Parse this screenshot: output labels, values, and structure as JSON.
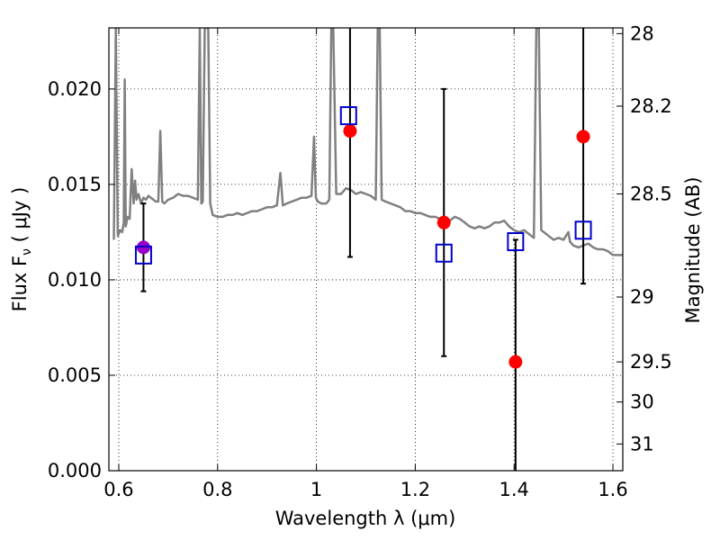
{
  "chart_data": {
    "type": "scatter",
    "xlabel": "Wavelength  λ (μm)",
    "ylabel": "Flux  F",
    "ylabel_sub": "ν",
    "ylabel_unit": "  ( μJy )",
    "y2label": "Magnitude (AB)",
    "xlim": [
      0.58,
      1.62
    ],
    "ylim": [
      0.0,
      0.0232
    ],
    "grid": true,
    "x_ticks": [
      0.6,
      0.8,
      1.0,
      1.2,
      1.4,
      1.6
    ],
    "x_tick_labels": [
      "0.6",
      "0.8",
      "1",
      "1.2",
      "1.4",
      "1.6"
    ],
    "y_ticks": [
      0.0,
      0.005,
      0.01,
      0.015,
      0.02
    ],
    "y_tick_labels": [
      "0.000",
      "0.005",
      "0.010",
      "0.015",
      "0.020"
    ],
    "y2_ticks": [
      {
        "flux": 0.0229,
        "label": "28"
      },
      {
        "flux": 0.0191,
        "label": "28.2"
      },
      {
        "flux": 0.0145,
        "label": "28.5"
      },
      {
        "flux": 0.0091,
        "label": "29"
      },
      {
        "flux": 0.0057,
        "label": "29.5"
      },
      {
        "flux": 0.0036,
        "label": "30"
      },
      {
        "flux": 0.0014,
        "label": "31"
      }
    ],
    "colors": {
      "model": "#808080",
      "observed": "#ff0000",
      "highlight": "#9900cc",
      "synthetic": "#0000cc",
      "errorbar": "#000000"
    },
    "series": [
      {
        "kind": "model_spectrum",
        "points": [
          [
            0.59,
            0.0121
          ],
          [
            0.594,
            0.0232
          ],
          [
            0.598,
            0.0123
          ],
          [
            0.603,
            0.0126
          ],
          [
            0.607,
            0.0125
          ],
          [
            0.61,
            0.013
          ],
          [
            0.612,
            0.0205
          ],
          [
            0.614,
            0.0128
          ],
          [
            0.618,
            0.0133
          ],
          [
            0.622,
            0.0132
          ],
          [
            0.626,
            0.0158
          ],
          [
            0.63,
            0.014
          ],
          [
            0.633,
            0.0152
          ],
          [
            0.636,
            0.0142
          ],
          [
            0.64,
            0.0145
          ],
          [
            0.645,
            0.014
          ],
          [
            0.65,
            0.0143
          ],
          [
            0.655,
            0.0142
          ],
          [
            0.66,
            0.0144
          ],
          [
            0.665,
            0.0143
          ],
          [
            0.67,
            0.0142
          ],
          [
            0.675,
            0.0141
          ],
          [
            0.68,
            0.0141
          ],
          [
            0.684,
            0.0178
          ],
          [
            0.688,
            0.0141
          ],
          [
            0.692,
            0.014
          ],
          [
            0.7,
            0.0142
          ],
          [
            0.71,
            0.0143
          ],
          [
            0.72,
            0.0145
          ],
          [
            0.73,
            0.0144
          ],
          [
            0.74,
            0.0144
          ],
          [
            0.75,
            0.0143
          ],
          [
            0.76,
            0.0142
          ],
          [
            0.764,
            0.0232
          ],
          [
            0.767,
            0.014
          ],
          [
            0.77,
            0.0141
          ],
          [
            0.774,
            0.0232
          ],
          [
            0.778,
            0.0232
          ],
          [
            0.781,
            0.0232
          ],
          [
            0.785,
            0.014
          ],
          [
            0.79,
            0.0134
          ],
          [
            0.8,
            0.0133
          ],
          [
            0.81,
            0.0133
          ],
          [
            0.82,
            0.0134
          ],
          [
            0.83,
            0.0134
          ],
          [
            0.84,
            0.0135
          ],
          [
            0.85,
            0.0134
          ],
          [
            0.86,
            0.0135
          ],
          [
            0.87,
            0.0136
          ],
          [
            0.88,
            0.0136
          ],
          [
            0.89,
            0.0137
          ],
          [
            0.9,
            0.0138
          ],
          [
            0.91,
            0.0138
          ],
          [
            0.92,
            0.0139
          ],
          [
            0.927,
            0.0156
          ],
          [
            0.932,
            0.0139
          ],
          [
            0.94,
            0.014
          ],
          [
            0.95,
            0.0141
          ],
          [
            0.96,
            0.0142
          ],
          [
            0.97,
            0.0143
          ],
          [
            0.98,
            0.0143
          ],
          [
            0.99,
            0.0144
          ],
          [
            0.995,
            0.0175
          ],
          [
            0.999,
            0.0143
          ],
          [
            1.003,
            0.0141
          ],
          [
            1.01,
            0.014
          ],
          [
            1.02,
            0.014
          ],
          [
            1.026,
            0.0142
          ],
          [
            1.03,
            0.0232
          ],
          [
            1.034,
            0.0232
          ],
          [
            1.04,
            0.0145
          ],
          [
            1.05,
            0.0145
          ],
          [
            1.06,
            0.0148
          ],
          [
            1.07,
            0.0147
          ],
          [
            1.08,
            0.0145
          ],
          [
            1.09,
            0.0146
          ],
          [
            1.1,
            0.0145
          ],
          [
            1.11,
            0.0144
          ],
          [
            1.12,
            0.0142
          ],
          [
            1.124,
            0.0232
          ],
          [
            1.128,
            0.0232
          ],
          [
            1.132,
            0.0142
          ],
          [
            1.14,
            0.0141
          ],
          [
            1.15,
            0.014
          ],
          [
            1.16,
            0.0139
          ],
          [
            1.17,
            0.0138
          ],
          [
            1.18,
            0.0136
          ],
          [
            1.19,
            0.0136
          ],
          [
            1.2,
            0.0135
          ],
          [
            1.21,
            0.0135
          ],
          [
            1.22,
            0.0134
          ],
          [
            1.23,
            0.0133
          ],
          [
            1.24,
            0.0133
          ],
          [
            1.25,
            0.0132
          ],
          [
            1.26,
            0.0133
          ],
          [
            1.27,
            0.0131
          ],
          [
            1.28,
            0.0133
          ],
          [
            1.29,
            0.0132
          ],
          [
            1.3,
            0.013
          ],
          [
            1.31,
            0.0128
          ],
          [
            1.32,
            0.0127
          ],
          [
            1.33,
            0.0128
          ],
          [
            1.34,
            0.0127
          ],
          [
            1.35,
            0.0128
          ],
          [
            1.36,
            0.013
          ],
          [
            1.37,
            0.013
          ],
          [
            1.38,
            0.0131
          ],
          [
            1.39,
            0.0128
          ],
          [
            1.4,
            0.0126
          ],
          [
            1.41,
            0.0125
          ],
          [
            1.42,
            0.0126
          ],
          [
            1.43,
            0.0124
          ],
          [
            1.44,
            0.0122
          ],
          [
            1.445,
            0.0232
          ],
          [
            1.45,
            0.0232
          ],
          [
            1.455,
            0.0126
          ],
          [
            1.46,
            0.0125
          ],
          [
            1.47,
            0.0123
          ],
          [
            1.48,
            0.0121
          ],
          [
            1.49,
            0.0122
          ],
          [
            1.5,
            0.0121
          ],
          [
            1.51,
            0.0125
          ],
          [
            1.513,
            0.012
          ],
          [
            1.52,
            0.0118
          ],
          [
            1.53,
            0.0117
          ],
          [
            1.54,
            0.0118
          ],
          [
            1.55,
            0.0119
          ],
          [
            1.56,
            0.0117
          ],
          [
            1.57,
            0.0116
          ],
          [
            1.58,
            0.0116
          ],
          [
            1.59,
            0.0115
          ],
          [
            1.6,
            0.0113
          ],
          [
            1.61,
            0.0113
          ],
          [
            1.62,
            0.0113
          ]
        ]
      },
      {
        "kind": "observed_flux",
        "points": [
          {
            "x": 0.65,
            "y": 0.0117,
            "err_low": 0.0094,
            "err_high": 0.014,
            "color": "highlight"
          },
          {
            "x": 1.068,
            "y": 0.0178,
            "err_low": 0.0112,
            "err_high": 0.0232,
            "color": "observed"
          },
          {
            "x": 1.258,
            "y": 0.013,
            "err_low": 0.006,
            "err_high": 0.02,
            "color": "observed"
          },
          {
            "x": 1.403,
            "y": 0.0057,
            "err_low": 0.0,
            "err_high": 0.0121,
            "color": "observed"
          },
          {
            "x": 1.54,
            "y": 0.0175,
            "err_low": 0.0098,
            "err_high": 0.0232,
            "color": "observed"
          }
        ]
      },
      {
        "kind": "model_band_flux",
        "points": [
          {
            "x": 0.65,
            "y": 0.0113
          },
          {
            "x": 1.065,
            "y": 0.0186
          },
          {
            "x": 1.258,
            "y": 0.0114
          },
          {
            "x": 1.403,
            "y": 0.012
          },
          {
            "x": 1.54,
            "y": 0.0126
          }
        ]
      }
    ]
  }
}
